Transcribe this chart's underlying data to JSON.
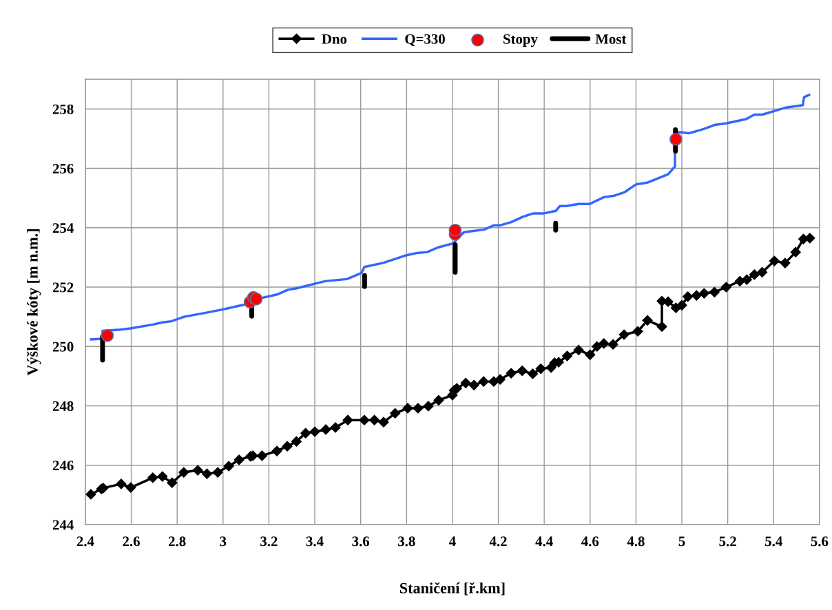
{
  "chart_data": {
    "type": "line",
    "xlabel": "Staničení [ř.km]",
    "ylabel": "Výškové kóty [m n.m.]",
    "xlim": [
      2.4,
      5.6
    ],
    "xticks": [
      2.4,
      2.6,
      2.8,
      3,
      3.2,
      3.4,
      3.6,
      3.8,
      4,
      4.2,
      4.4,
      4.6,
      4.8,
      5,
      5.2,
      5.4,
      5.6
    ],
    "ylim": [
      244,
      259
    ],
    "yticks": [
      244,
      246,
      248,
      250,
      252,
      254,
      256,
      258
    ],
    "grid": true,
    "legend": "top",
    "series": [
      {
        "name": "Dno",
        "color": "#000000",
        "marker": "diamond",
        "x": [
          2.424,
          2.47,
          2.478,
          2.556,
          2.598,
          2.694,
          2.736,
          2.778,
          2.829,
          2.89,
          2.93,
          2.977,
          3.025,
          3.07,
          3.12,
          3.13,
          3.17,
          3.235,
          3.28,
          3.32,
          3.36,
          3.4,
          3.448,
          3.49,
          3.544,
          3.616,
          3.66,
          3.7,
          3.75,
          3.805,
          3.85,
          3.895,
          3.94,
          4.0,
          4.007,
          4.019,
          4.058,
          4.094,
          4.136,
          4.18,
          4.208,
          4.256,
          4.304,
          4.35,
          4.385,
          4.43,
          4.445,
          4.463,
          4.5,
          4.55,
          4.6,
          4.63,
          4.66,
          4.7,
          4.748,
          4.808,
          4.85,
          4.913,
          4.913,
          4.94,
          4.974,
          5.0,
          5.026,
          5.064,
          5.097,
          5.142,
          5.193,
          5.253,
          5.283,
          5.316,
          5.35,
          5.403,
          5.45,
          5.496,
          5.53,
          5.558
        ],
        "values": [
          245.02,
          245.2,
          245.23,
          245.37,
          245.25,
          245.58,
          245.62,
          245.41,
          245.76,
          245.83,
          245.71,
          245.76,
          245.97,
          246.18,
          246.3,
          246.32,
          246.32,
          246.48,
          246.64,
          246.8,
          247.08,
          247.13,
          247.2,
          247.27,
          247.52,
          247.52,
          247.52,
          247.45,
          247.75,
          247.92,
          247.92,
          247.99,
          248.19,
          248.36,
          248.52,
          248.59,
          248.77,
          248.7,
          248.82,
          248.82,
          248.89,
          249.1,
          249.18,
          249.08,
          249.25,
          249.29,
          249.45,
          249.47,
          249.68,
          249.88,
          249.72,
          250.0,
          250.1,
          250.07,
          250.4,
          250.51,
          250.88,
          250.67,
          251.53,
          251.51,
          251.3,
          251.39,
          251.68,
          251.72,
          251.79,
          251.83,
          252.0,
          252.2,
          252.25,
          252.42,
          252.5,
          252.88,
          252.81,
          253.18,
          253.62,
          253.65
        ]
      },
      {
        "name": "Q=330",
        "color": "#3366ff",
        "marker": "none",
        "x": [
          2.42,
          2.474,
          2.475,
          2.553,
          2.597,
          2.694,
          2.736,
          2.775,
          2.83,
          2.928,
          3.0,
          3.075,
          3.118,
          3.16,
          3.235,
          3.283,
          3.32,
          3.445,
          3.54,
          3.604,
          3.616,
          3.7,
          3.793,
          3.846,
          3.89,
          3.938,
          4.002,
          4.05,
          4.139,
          4.18,
          4.207,
          4.256,
          4.307,
          4.351,
          4.395,
          4.451,
          4.468,
          4.496,
          4.55,
          4.598,
          4.66,
          4.706,
          4.751,
          4.8,
          4.85,
          4.94,
          4.97,
          4.97,
          4.996,
          5.03,
          5.097,
          5.142,
          5.196,
          5.28,
          5.316,
          5.35,
          5.402,
          5.449,
          5.527,
          5.533,
          5.559
        ],
        "values": [
          250.24,
          250.26,
          250.53,
          250.57,
          250.61,
          250.74,
          250.81,
          250.85,
          251.0,
          251.14,
          251.25,
          251.38,
          251.44,
          251.62,
          251.75,
          251.91,
          251.96,
          252.2,
          252.27,
          252.48,
          252.68,
          252.82,
          253.06,
          253.15,
          253.18,
          253.34,
          253.47,
          253.85,
          253.94,
          254.08,
          254.08,
          254.19,
          254.37,
          254.48,
          254.48,
          254.57,
          254.73,
          254.73,
          254.8,
          254.8,
          255.03,
          255.08,
          255.2,
          255.46,
          255.52,
          255.8,
          256.06,
          257.21,
          257.22,
          257.18,
          257.33,
          257.46,
          257.52,
          257.66,
          257.81,
          257.81,
          257.93,
          258.04,
          258.13,
          258.4,
          258.49
        ]
      },
      {
        "name": "Stopy",
        "type": "scatter",
        "color": "#ff0000",
        "marker": "circle",
        "x": [
          2.496,
          3.118,
          3.133,
          3.145,
          4.012,
          4.012,
          4.974
        ],
        "values": [
          250.37,
          251.5,
          251.65,
          251.6,
          253.78,
          253.92,
          256.98
        ]
      },
      {
        "name": "Most",
        "type": "line",
        "color": "#000000",
        "marker": "none",
        "x": [
          2.475,
          2.475,
          null,
          3.125,
          3.125,
          null,
          3.617,
          3.617,
          null,
          4.012,
          4.012,
          null,
          4.45,
          4.45,
          null,
          4.972,
          4.972
        ],
        "values": [
          250.33,
          249.54,
          null,
          251.32,
          251.02,
          null,
          252.39,
          252.02,
          null,
          253.43,
          252.5,
          null,
          254.15,
          253.92,
          null,
          257.3,
          256.58
        ]
      }
    ]
  }
}
